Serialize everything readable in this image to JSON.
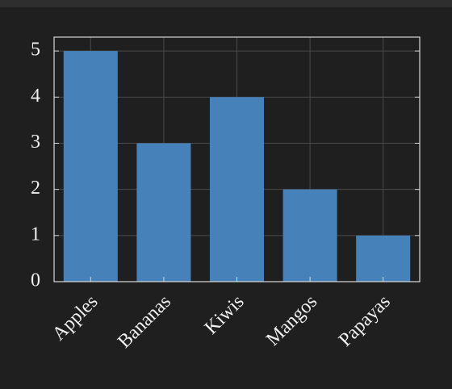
{
  "chart_data": {
    "type": "bar",
    "categories": [
      "Apples",
      "Bananas",
      "Kiwis",
      "Mangos",
      "Papayas"
    ],
    "values": [
      5,
      3,
      4,
      2,
      1
    ],
    "color": "#4682b9",
    "ylim": [
      0,
      5.3
    ],
    "yticks": [
      0,
      1,
      2,
      3,
      4,
      5
    ],
    "grid": true
  }
}
